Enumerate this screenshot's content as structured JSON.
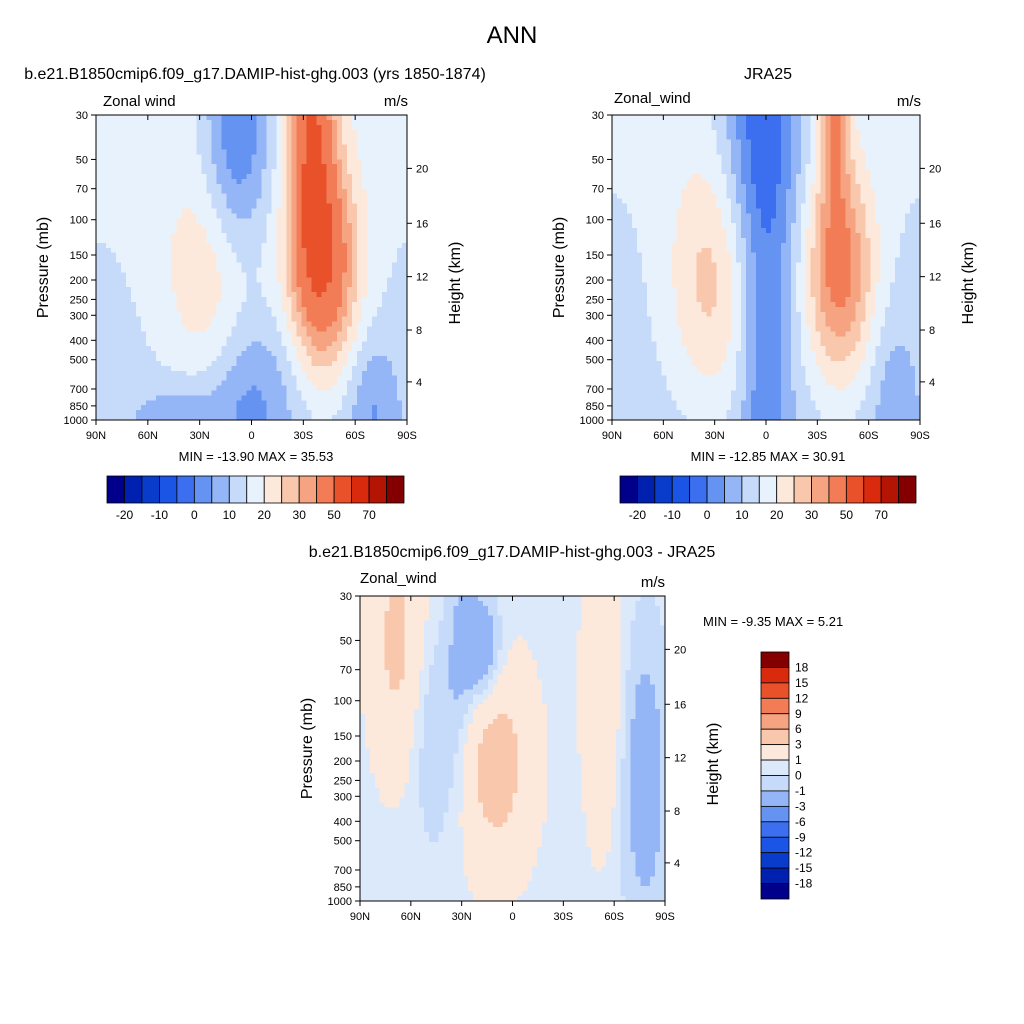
{
  "page_title": "ANN",
  "chart_data": [
    {
      "type": "heatmap",
      "title": "b.e21.B1850cmip6.f09_g17.DAMIP-hist-ghg.003 (yrs 1850-1874)",
      "subtitle_left": "Zonal wind",
      "units": "m/s",
      "ylabel": "Pressure (mb)",
      "ylabel_right": "Height (km)",
      "x_ticks": [
        "90N",
        "60N",
        "30N",
        "0",
        "30S",
        "60S",
        "90S"
      ],
      "y_ticks": [
        "30",
        "50",
        "70",
        "100",
        "150",
        "200",
        "250",
        "300",
        "400",
        "500",
        "700",
        "850",
        "1000"
      ],
      "y_ticks_right": [
        "4",
        "8",
        "12",
        "16",
        "20"
      ],
      "stats": "MIN = -13.90  MAX =  35.53",
      "colorbar_labels": [
        "-20",
        "-10",
        "0",
        "10",
        "20",
        "30",
        "50",
        "70"
      ],
      "levels": [
        -25,
        -20,
        -15,
        -10,
        -5,
        0,
        5,
        10,
        15,
        20,
        25,
        30,
        40,
        50,
        60,
        70
      ],
      "colors": [
        "#00008b",
        "#0020b0",
        "#0a3ccc",
        "#1a55e6",
        "#3b6ff0",
        "#6593f2",
        "#94b6f6",
        "#c6daf9",
        "#e8f2fd",
        "#fde9dc",
        "#f9c7ab",
        "#f5a381",
        "#f27c55",
        "#e9512b",
        "#d92a0e",
        "#b41403",
        "#840000"
      ],
      "min": -13.9,
      "max": 35.53
    },
    {
      "type": "heatmap",
      "title": "JRA25",
      "subtitle_left": "Zonal_wind",
      "units": "m/s",
      "ylabel": "Pressure (mb)",
      "ylabel_right": "Height (km)",
      "x_ticks": [
        "90N",
        "60N",
        "30N",
        "0",
        "30S",
        "60S",
        "90S"
      ],
      "y_ticks": [
        "30",
        "50",
        "70",
        "100",
        "150",
        "200",
        "250",
        "300",
        "400",
        "500",
        "700",
        "850",
        "1000"
      ],
      "y_ticks_right": [
        "4",
        "8",
        "12",
        "16",
        "20"
      ],
      "stats": "MIN = -12.85  MAX =  30.91",
      "colorbar_labels": [
        "-20",
        "-10",
        "0",
        "10",
        "20",
        "30",
        "50",
        "70"
      ],
      "levels": [
        -25,
        -20,
        -15,
        -10,
        -5,
        0,
        5,
        10,
        15,
        20,
        25,
        30,
        40,
        50,
        60,
        70
      ],
      "colors": [
        "#00008b",
        "#0020b0",
        "#0a3ccc",
        "#1a55e6",
        "#3b6ff0",
        "#6593f2",
        "#94b6f6",
        "#c6daf9",
        "#e8f2fd",
        "#fde9dc",
        "#f9c7ab",
        "#f5a381",
        "#f27c55",
        "#e9512b",
        "#d92a0e",
        "#b41403",
        "#840000"
      ],
      "min": -12.85,
      "max": 30.91
    },
    {
      "type": "heatmap",
      "title": "b.e21.B1850cmip6.f09_g17.DAMIP-hist-ghg.003 - JRA25",
      "subtitle_left": "Zonal_wind",
      "units": "m/s",
      "ylabel": "Pressure (mb)",
      "ylabel_right": "Height (km)",
      "x_ticks": [
        "90N",
        "60N",
        "30N",
        "0",
        "30S",
        "60S",
        "90S"
      ],
      "y_ticks": [
        "30",
        "50",
        "70",
        "100",
        "150",
        "200",
        "250",
        "300",
        "400",
        "500",
        "700",
        "850",
        "1000"
      ],
      "y_ticks_right": [
        "4",
        "8",
        "12",
        "16",
        "20"
      ],
      "stats": "MIN =  -9.35  MAX =   5.21",
      "colorbar_labels": [
        "18",
        "15",
        "12",
        "9",
        "6",
        "3",
        "1",
        "0",
        "-1",
        "-3",
        "-6",
        "-9",
        "-12",
        "-15",
        "-18"
      ],
      "levels": [
        -18,
        -15,
        -12,
        -9,
        -6,
        -3,
        -1,
        0,
        1,
        3,
        6,
        9,
        12,
        15,
        18
      ],
      "colors": [
        "#00008b",
        "#0020b0",
        "#0a3ccc",
        "#1a55e6",
        "#3b6ff0",
        "#6593f2",
        "#94b6f6",
        "#c6daf9",
        "#dce9fb",
        "#fde9dc",
        "#f9c7ab",
        "#f5a381",
        "#f27c55",
        "#e9512b",
        "#d92a0e",
        "#840000"
      ],
      "min": -9.35,
      "max": 5.21
    }
  ]
}
